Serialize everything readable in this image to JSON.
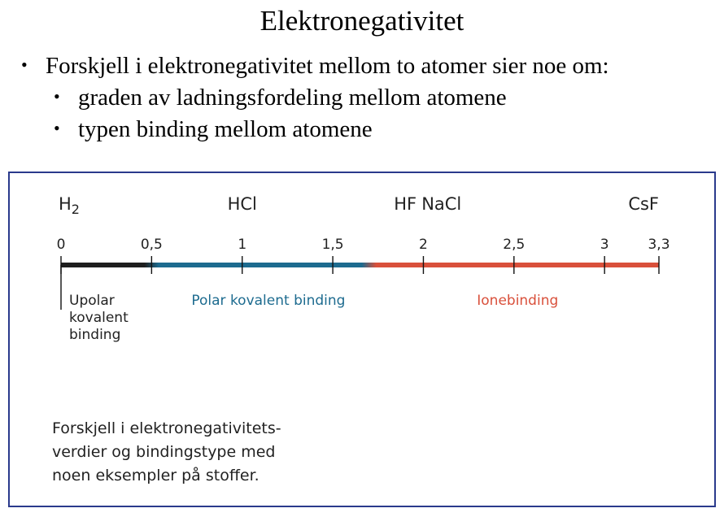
{
  "slide": {
    "title": "Elektronegativitet",
    "bullets": [
      {
        "level": 1,
        "text": "Forskjell i elektronegativitet mellom to atomer sier noe om:"
      },
      {
        "level": 2,
        "text": "graden av ladningsfordeling mellom atomene"
      },
      {
        "level": 2,
        "text": "typen binding mellom atomene"
      }
    ]
  },
  "figure": {
    "caption": "Forskjell i elektronegativitets-\nverdier og bindingstype med\nnoen eksempler på stoffer.",
    "colors": {
      "nonpolar": "#1e1e1e",
      "polar": "#1d6b8f",
      "ionic": "#d9503b",
      "frame": "#2a3a8c",
      "text": "#222222"
    }
  },
  "chart_data": {
    "type": "number-line",
    "xlim": [
      0,
      3.3
    ],
    "ticks": [
      {
        "value": 0,
        "label": "0"
      },
      {
        "value": 0.5,
        "label": "0,5"
      },
      {
        "value": 1,
        "label": "1"
      },
      {
        "value": 1.5,
        "label": "1,5"
      },
      {
        "value": 2,
        "label": "2"
      },
      {
        "value": 2.5,
        "label": "2,5"
      },
      {
        "value": 3,
        "label": "3"
      },
      {
        "value": 3.3,
        "label": "3,3"
      }
    ],
    "substances": [
      {
        "name": "H",
        "subscript": "2",
        "value": 0
      },
      {
        "name": "HCl",
        "value": 1
      },
      {
        "name": "HF",
        "value": 1.9
      },
      {
        "name": "NaCl",
        "value": 2.1
      },
      {
        "name": "CsF",
        "value": 3.3
      }
    ],
    "regions": [
      {
        "name": "Upolar\nkovalent\nbinding",
        "from": 0,
        "to": 0.5,
        "color": "#1e1e1e"
      },
      {
        "name": "Polar kovalent binding",
        "from": 0.5,
        "to": 1.7,
        "color": "#1d6b8f"
      },
      {
        "name": "Ionebinding",
        "from": 1.7,
        "to": 3.3,
        "color": "#d9503b"
      }
    ]
  }
}
